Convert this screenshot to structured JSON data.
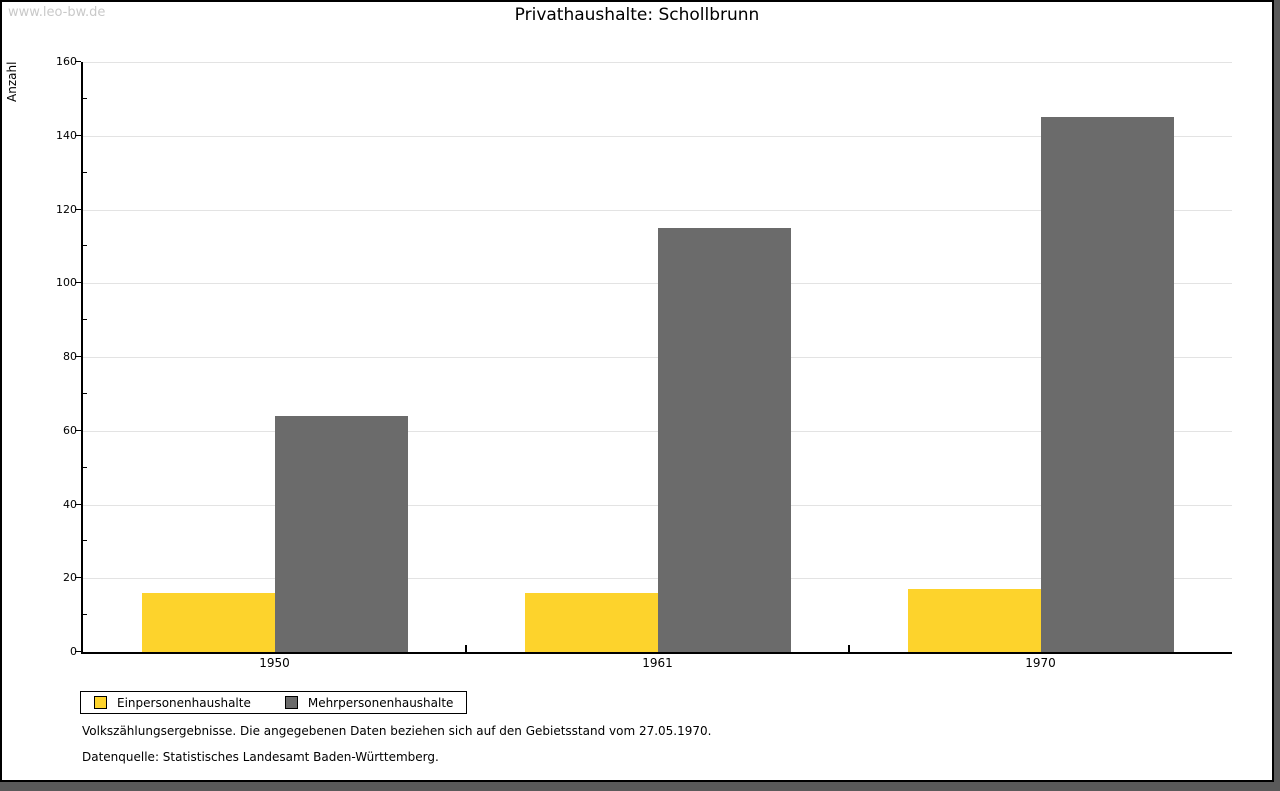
{
  "watermark": "www.leo-bw.de",
  "title": "Privathaushalte: Schollbrunn",
  "chart_data": {
    "type": "bar",
    "title": "Privathaushalte: Schollbrunn",
    "categories": [
      "1950",
      "1961",
      "1970"
    ],
    "series": [
      {
        "name": "Einpersonenhaushalte",
        "color": "#FDD32C",
        "values": [
          16,
          16,
          17
        ]
      },
      {
        "name": "Mehrpersonenhaushalte",
        "color": "#6B6B6B",
        "values": [
          64,
          115,
          145
        ]
      }
    ],
    "xlabel": "",
    "ylabel": "Anzahl",
    "ylim": [
      0,
      160
    ],
    "ytick_step": 20,
    "yminor_step": 10,
    "grid": true,
    "legend_position": "bottom-left"
  },
  "footnotes": [
    "Volkszählungsergebnisse. Die angegebenen Daten beziehen sich auf den Gebietsstand vom 27.05.1970.",
    "Datenquelle: Statistisches Landesamt Baden-Württemberg."
  ],
  "colors": {
    "bar_yellow": "#FDD32C",
    "bar_gray": "#6B6B6B",
    "grid": "#E3E3E3",
    "axis": "#000000",
    "watermark": "#C9C9C9",
    "frame_shadow": "#5A5A5A",
    "background": "#FFFFFF"
  }
}
